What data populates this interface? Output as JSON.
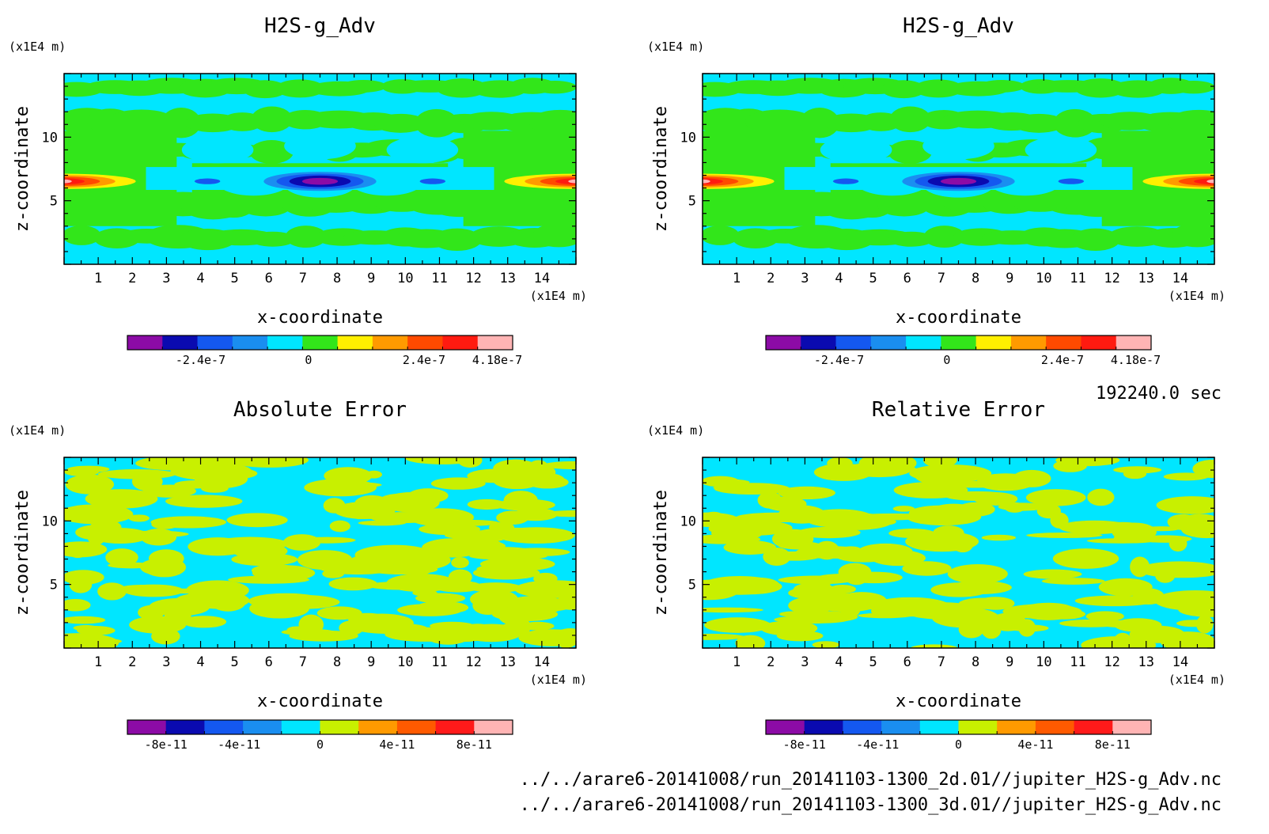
{
  "footer": {
    "time_label": "192240.0 sec",
    "file_2d": "../../arare6-20141008/run_20141103-1300_2d.01//jupiter_H2S-g_Adv.nc",
    "file_3d": "../../arare6-20141008/run_20141103-1300_3d.01//jupiter_H2S-g_Adv.nc"
  },
  "colors": {
    "palette": [
      "#8c0ba6",
      "#0a0ab0",
      "#1458f0",
      "#1a8ef0",
      "#00e6ff",
      "#32e61a",
      "#fff000",
      "#ff9a00",
      "#ff4a00",
      "#ff1a10",
      "#ffb4b4"
    ],
    "error_palette": [
      "#8c0ba6",
      "#0a0ab0",
      "#1458f0",
      "#1a8ef0",
      "#00e6ff",
      "#c8f000",
      "#ff9a00",
      "#ff5a00",
      "#ff1a1a",
      "#ffb4b4"
    ]
  },
  "chart_data": [
    {
      "type": "heatmap",
      "title": "H2S-g_Adv",
      "xlabel": "x-coordinate",
      "ylabel": "z-coordinate",
      "x_unit": "(x1E4 m)",
      "y_unit": "(x1E4 m)",
      "xlim": [
        0,
        15
      ],
      "ylim": [
        0,
        15
      ],
      "x_ticks": [
        "1",
        "2",
        "3",
        "4",
        "5",
        "6",
        "7",
        "8",
        "9",
        "10",
        "11",
        "12",
        "13",
        "14"
      ],
      "y_ticks": [
        "5",
        "10"
      ],
      "colorbar_labels": [
        "-2.4e-7",
        "0",
        "2.4e-7",
        "4.18e-7"
      ],
      "colorbar_levels": 11,
      "variant": "field"
    },
    {
      "type": "heatmap",
      "title": "H2S-g_Adv",
      "xlabel": "x-coordinate",
      "ylabel": "z-coordinate",
      "x_unit": "(x1E4 m)",
      "y_unit": "(x1E4 m)",
      "xlim": [
        0,
        15
      ],
      "ylim": [
        0,
        15
      ],
      "x_ticks": [
        "1",
        "2",
        "3",
        "4",
        "5",
        "6",
        "7",
        "8",
        "9",
        "10",
        "11",
        "12",
        "13",
        "14"
      ],
      "y_ticks": [
        "5",
        "10"
      ],
      "colorbar_labels": [
        "-2.4e-7",
        "0",
        "2.4e-7",
        "4.18e-7"
      ],
      "colorbar_levels": 11,
      "variant": "field"
    },
    {
      "type": "heatmap",
      "title": "Absolute Error",
      "xlabel": "x-coordinate",
      "ylabel": "z-coordinate",
      "x_unit": "(x1E4 m)",
      "y_unit": "(x1E4 m)",
      "xlim": [
        0,
        15
      ],
      "ylim": [
        0,
        15
      ],
      "x_ticks": [
        "1",
        "2",
        "3",
        "4",
        "5",
        "6",
        "7",
        "8",
        "9",
        "10",
        "11",
        "12",
        "13",
        "14"
      ],
      "y_ticks": [
        "5",
        "10"
      ],
      "colorbar_labels": [
        "-8e-11",
        "-4e-11",
        "0",
        "4e-11",
        "8e-11"
      ],
      "colorbar_levels": 10,
      "variant": "abs-error"
    },
    {
      "type": "heatmap",
      "title": "Relative Error",
      "xlabel": "x-coordinate",
      "ylabel": "z-coordinate",
      "x_unit": "(x1E4 m)",
      "y_unit": "(x1E4 m)",
      "xlim": [
        0,
        15
      ],
      "ylim": [
        0,
        15
      ],
      "x_ticks": [
        "1",
        "2",
        "3",
        "4",
        "5",
        "6",
        "7",
        "8",
        "9",
        "10",
        "11",
        "12",
        "13",
        "14"
      ],
      "y_ticks": [
        "5",
        "10"
      ],
      "colorbar_labels": [
        "-8e-11",
        "-4e-11",
        "0",
        "4e-11",
        "8e-11"
      ],
      "colorbar_levels": 10,
      "variant": "rel-error"
    }
  ]
}
